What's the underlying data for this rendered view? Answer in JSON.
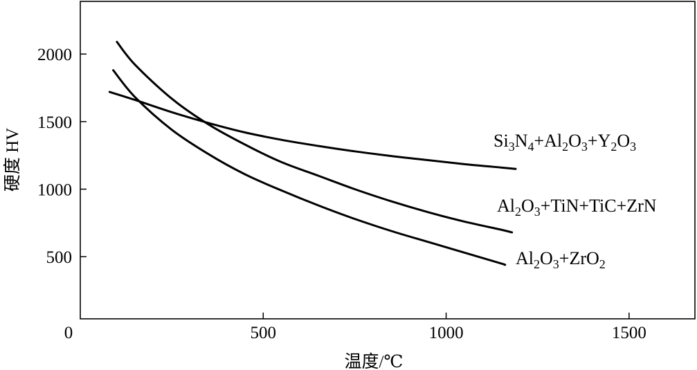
{
  "chart_data": {
    "type": "line",
    "title": "",
    "xlabel": "温度/℃",
    "ylabel": "硬度 HV",
    "xlim": [
      0,
      1680
    ],
    "ylim": [
      40,
      2390
    ],
    "xticks": [
      0,
      500,
      1000,
      1500
    ],
    "yticks": [
      500,
      1000,
      1500,
      2000
    ],
    "grid": false,
    "legend": "none",
    "series": [
      {
        "name": "Si3N4+Al2O3+Y2O3",
        "label": {
          "base": "Si",
          "parts": [
            [
              "3",
              "sub"
            ],
            [
              "N",
              ""
            ],
            [
              "4",
              "sub"
            ],
            [
              "+Al",
              ""
            ],
            [
              "2",
              "sub"
            ],
            [
              "O",
              ""
            ],
            [
              "3",
              "sub"
            ],
            [
              "+Y",
              ""
            ],
            [
              "2",
              "sub"
            ],
            [
              "O",
              ""
            ],
            [
              "3",
              "sub"
            ]
          ]
        },
        "x": [
          80,
          150,
          250,
          350,
          450,
          550,
          650,
          750,
          850,
          950,
          1050,
          1150,
          1190
        ],
        "y": [
          1720,
          1660,
          1570,
          1490,
          1420,
          1365,
          1320,
          1280,
          1245,
          1215,
          1185,
          1160,
          1150
        ]
      },
      {
        "name": "Al2O3+TiN+TiC+ZrN",
        "label": {
          "base": "Al",
          "parts": [
            [
              "2",
              "sub"
            ],
            [
              "O",
              ""
            ],
            [
              "3",
              "sub"
            ],
            [
              "+TiN+TiC+ZrN",
              ""
            ]
          ]
        },
        "x": [
          100,
          150,
          250,
          350,
          450,
          550,
          650,
          750,
          850,
          950,
          1050,
          1150,
          1180
        ],
        "y": [
          2090,
          1920,
          1670,
          1480,
          1330,
          1200,
          1100,
          1000,
          910,
          830,
          760,
          700,
          680
        ]
      },
      {
        "name": "Al2O3+ZrO2",
        "label": {
          "base": "Al",
          "parts": [
            [
              "2",
              "sub"
            ],
            [
              "O",
              ""
            ],
            [
              "3",
              "sub"
            ],
            [
              "+ZrO",
              ""
            ],
            [
              "2",
              "sub"
            ]
          ]
        },
        "x": [
          90,
          150,
          250,
          350,
          450,
          550,
          650,
          750,
          850,
          950,
          1050,
          1150,
          1160
        ],
        "y": [
          1880,
          1680,
          1440,
          1260,
          1110,
          990,
          880,
          780,
          690,
          610,
          530,
          450,
          440
        ]
      }
    ]
  }
}
